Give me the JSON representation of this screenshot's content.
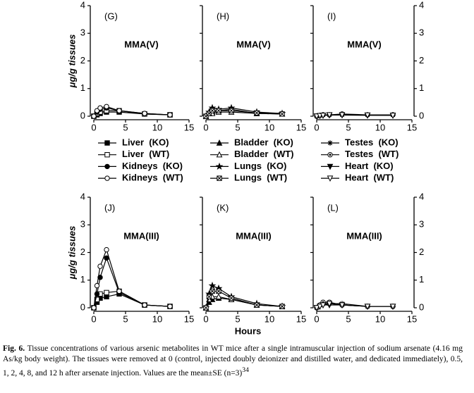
{
  "chart_data": [
    {
      "type": "line",
      "panel_label": "(G)",
      "annotation": "MMA(V)",
      "ylabel": "μg/g tissues",
      "ytick_side": "left",
      "x": [
        0,
        0.5,
        1,
        2,
        4,
        8,
        12
      ],
      "xlim": [
        0,
        15
      ],
      "xticks": [
        0,
        5,
        10,
        15
      ],
      "ylim": [
        0,
        4
      ],
      "yticks": [
        0,
        1,
        2,
        3,
        4
      ],
      "series": [
        {
          "name": "Liver  (KO)",
          "color": "#000000",
          "marker": "square-filled",
          "values": [
            0,
            0.05,
            0.1,
            0.15,
            0.15,
            0.08,
            0.05
          ]
        },
        {
          "name": "Liver  (WT)",
          "color": "#000000",
          "marker": "square-open",
          "values": [
            0,
            0.1,
            0.15,
            0.2,
            0.2,
            0.08,
            0.05
          ]
        },
        {
          "name": "Kidneys  (KO)",
          "color": "#000000",
          "marker": "circle-filled",
          "values": [
            0,
            0.15,
            0.25,
            0.3,
            0.2,
            0.1,
            0.05
          ]
        },
        {
          "name": "Kidneys  (WT)",
          "color": "#000000",
          "marker": "circle-open",
          "values": [
            0,
            0.2,
            0.3,
            0.35,
            0.2,
            0.1,
            0.05
          ]
        }
      ]
    },
    {
      "type": "line",
      "panel_label": "(H)",
      "annotation": "MMA(V)",
      "ytick_side": "none",
      "x": [
        0,
        0.5,
        1,
        2,
        4,
        8,
        12
      ],
      "xlim": [
        0,
        15
      ],
      "xticks": [
        0,
        5,
        10,
        15
      ],
      "ylim": [
        0,
        4
      ],
      "yticks": [
        0,
        1,
        2,
        3,
        4
      ],
      "series": [
        {
          "name": "Bladder  (KO)",
          "color": "#000000",
          "marker": "triangle-filled",
          "values": [
            0,
            0.1,
            0.15,
            0.2,
            0.25,
            0.1,
            0.08
          ]
        },
        {
          "name": "Bladder  (WT)",
          "color": "#000000",
          "marker": "triangle-open",
          "values": [
            0,
            0.1,
            0.1,
            0.15,
            0.15,
            0.1,
            0.08
          ]
        },
        {
          "name": "Lungs  (KO)",
          "color": "#000000",
          "marker": "star",
          "values": [
            0,
            0.15,
            0.3,
            0.25,
            0.3,
            0.15,
            0.1
          ]
        },
        {
          "name": "Lungs  (WT)",
          "color": "#000000",
          "marker": "square-x",
          "values": [
            0,
            0.1,
            0.2,
            0.2,
            0.2,
            0.12,
            0.08
          ]
        }
      ]
    },
    {
      "type": "line",
      "panel_label": "(I)",
      "annotation": "MMA(V)",
      "ytick_side": "right",
      "x": [
        0,
        0.5,
        1,
        2,
        4,
        8,
        12
      ],
      "xlim": [
        0,
        15
      ],
      "xticks": [
        0,
        5,
        10,
        15
      ],
      "ylim": [
        0,
        4
      ],
      "yticks": [
        0,
        1,
        2,
        3,
        4
      ],
      "series": [
        {
          "name": "Testes  (KO)",
          "color": "#000000",
          "marker": "asterisk",
          "values": [
            0,
            0.03,
            0.05,
            0.05,
            0.05,
            0.05,
            0.05
          ]
        },
        {
          "name": "Testes  (WT)",
          "color": "#000000",
          "marker": "circle-dot",
          "values": [
            0,
            0.03,
            0.05,
            0.05,
            0.08,
            0.05,
            0.05
          ]
        },
        {
          "name": "Heart  (KO)",
          "color": "#000000",
          "marker": "triangle-down-filled",
          "values": [
            0,
            0.02,
            0.03,
            0.04,
            0.04,
            0.03,
            0.03
          ]
        },
        {
          "name": "Heart  (WT)",
          "color": "#000000",
          "marker": "triangle-down-open",
          "values": [
            0,
            0.02,
            0.03,
            0.05,
            0.05,
            0.04,
            0.03
          ]
        }
      ]
    },
    {
      "type": "line",
      "panel_label": "(J)",
      "annotation": "MMA(III)",
      "ylabel": "μg/g tissues",
      "ytick_side": "left",
      "x": [
        0,
        0.5,
        1,
        2,
        4,
        8,
        12
      ],
      "xlim": [
        0,
        15
      ],
      "xticks": [
        0,
        5,
        10,
        15
      ],
      "ylim": [
        0,
        4
      ],
      "yticks": [
        0,
        1,
        2,
        3,
        4
      ],
      "series": [
        {
          "name": "Liver  (KO)",
          "color": "#000000",
          "marker": "square-filled",
          "values": [
            0,
            0.2,
            0.35,
            0.4,
            0.5,
            0.1,
            0.05
          ]
        },
        {
          "name": "Liver  (WT)",
          "color": "#000000",
          "marker": "square-open",
          "values": [
            0,
            0.3,
            0.5,
            0.55,
            0.6,
            0.1,
            0.05
          ]
        },
        {
          "name": "Kidneys  (KO)",
          "color": "#000000",
          "marker": "circle-filled",
          "values": [
            0,
            0.5,
            1.1,
            1.8,
            0.55,
            0.1,
            0.05
          ]
        },
        {
          "name": "Kidneys  (WT)",
          "color": "#000000",
          "marker": "circle-open",
          "values": [
            0,
            0.8,
            1.5,
            2.1,
            0.6,
            0.1,
            0.05
          ]
        }
      ]
    },
    {
      "type": "line",
      "panel_label": "(K)",
      "annotation": "MMA(III)",
      "xlabel": "Hours",
      "ytick_side": "none",
      "x": [
        0,
        0.5,
        1,
        2,
        4,
        8,
        12
      ],
      "xlim": [
        0,
        15
      ],
      "xticks": [
        0,
        5,
        10,
        15
      ],
      "ylim": [
        0,
        4
      ],
      "yticks": [
        0,
        1,
        2,
        3,
        4
      ],
      "series": [
        {
          "name": "Bladder  (KO)",
          "color": "#000000",
          "marker": "triangle-filled",
          "values": [
            0,
            0.2,
            0.3,
            0.35,
            0.3,
            0.1,
            0.05
          ]
        },
        {
          "name": "Bladder  (WT)",
          "color": "#000000",
          "marker": "triangle-open",
          "values": [
            0,
            0.3,
            0.4,
            0.4,
            0.3,
            0.1,
            0.05
          ]
        },
        {
          "name": "Lungs  (KO)",
          "color": "#000000",
          "marker": "star",
          "values": [
            0,
            0.5,
            0.8,
            0.7,
            0.4,
            0.15,
            0.05
          ]
        },
        {
          "name": "Lungs  (WT)",
          "color": "#000000",
          "marker": "square-x",
          "values": [
            0,
            0.4,
            0.6,
            0.6,
            0.35,
            0.1,
            0.05
          ]
        }
      ]
    },
    {
      "type": "line",
      "panel_label": "(L)",
      "annotation": "MMA(III)",
      "ytick_side": "right",
      "x": [
        0,
        0.5,
        1,
        2,
        4,
        8,
        12
      ],
      "xlim": [
        0,
        15
      ],
      "xticks": [
        0,
        5,
        10,
        15
      ],
      "ylim": [
        0,
        4
      ],
      "yticks": [
        0,
        1,
        2,
        3,
        4
      ],
      "series": [
        {
          "name": "Testes  (KO)",
          "color": "#000000",
          "marker": "asterisk",
          "values": [
            0,
            0.1,
            0.15,
            0.15,
            0.15,
            0.05,
            0.05
          ]
        },
        {
          "name": "Testes  (WT)",
          "color": "#000000",
          "marker": "circle-dot",
          "values": [
            0,
            0.1,
            0.2,
            0.2,
            0.1,
            0.05,
            0.05
          ]
        },
        {
          "name": "Heart  (KO)",
          "color": "#000000",
          "marker": "triangle-down-filled",
          "values": [
            0,
            0.05,
            0.1,
            0.1,
            0.1,
            0.05,
            0.05
          ]
        },
        {
          "name": "Heart  (WT)",
          "color": "#000000",
          "marker": "triangle-down-open",
          "values": [
            0,
            0.05,
            0.1,
            0.15,
            0.1,
            0.05,
            0.05
          ]
        }
      ]
    }
  ],
  "caption": {
    "label": "Fig. 6.",
    "text": " Tissue concentrations of various arsenic metabolites in WT mice after a single intramuscular injection of sodium arsenate (4.16 mg As/kg body weight). The tissues were removed at 0 (control, injected doubly deionizer and distilled water, and dedicated immediately), 0.5, 1, 2, 4, 8, and 12 h after arsenate injection. Values are the mean±SE (n=3)",
    "ref": "34"
  }
}
